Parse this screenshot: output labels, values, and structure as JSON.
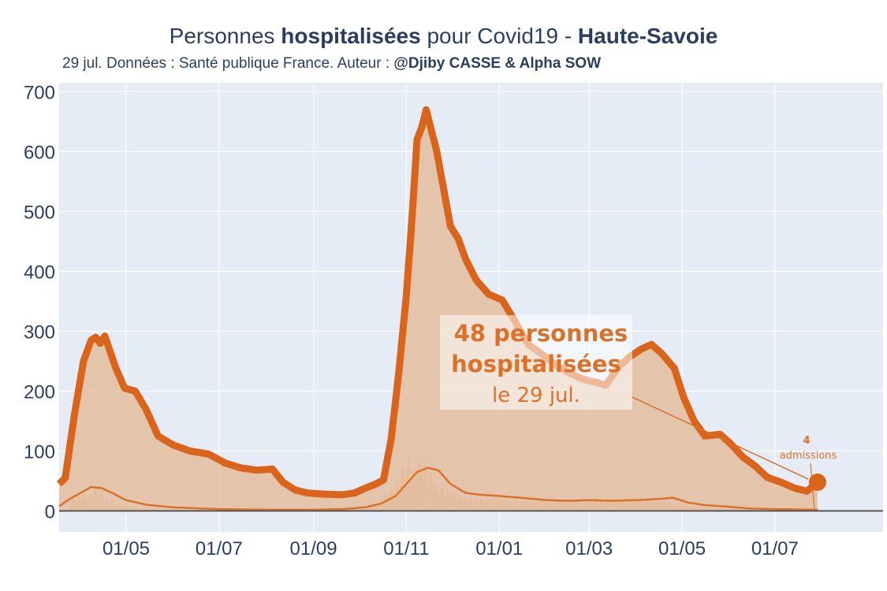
{
  "header": {
    "title_prefix": "Personnes ",
    "title_bold": "hospitalisées",
    "title_mid": " pour Covid19 - ",
    "title_region": "Haute-Savoie",
    "subtitle_text": "29 jul. Données : Santé publique France. Auteur : ",
    "subtitle_author": "@Djiby CASSE & Alpha SOW"
  },
  "annotation": {
    "line1": "48 personnes",
    "line2": "hospitalisées",
    "line3": "le 29 jul."
  },
  "admissions_annotation": {
    "value": "4",
    "label": "admissions"
  },
  "colors": {
    "main_line": "#d9651c",
    "fill": "#e4bd9c",
    "secondary_line": "#d9722a",
    "bars": "#e3a27a",
    "plot_bg": "#e5ecf6",
    "grid": "#ffffff",
    "text": "#2a3f5f"
  },
  "chart_data": {
    "type": "area",
    "x_axis": {
      "type": "date",
      "range": [
        "2020-03-18",
        "2021-09-10"
      ],
      "tick_values": [
        "2020-05-01",
        "2020-07-01",
        "2020-09-01",
        "2020-11-01",
        "2021-01-01",
        "2021-03-01",
        "2021-05-01",
        "2021-07-01"
      ],
      "tick_labels": [
        "01/05",
        "01/07",
        "01/09",
        "01/11",
        "01/01",
        "01/03",
        "01/05",
        "01/07"
      ]
    },
    "y_axis": {
      "range": [
        -35,
        715
      ],
      "tick_values": [
        0,
        100,
        200,
        300,
        400,
        500,
        600,
        700
      ],
      "tick_labels": [
        "0",
        "100",
        "200",
        "300",
        "400",
        "500",
        "600",
        "700"
      ],
      "grid": true
    },
    "legend": "none",
    "series": [
      {
        "kind": "hospitalised",
        "x": [
          "2020-03-18",
          "2020-03-22",
          "2020-03-28",
          "2020-04-03",
          "2020-04-08",
          "2020-04-11",
          "2020-04-14",
          "2020-04-17",
          "2020-04-20",
          "2020-04-24",
          "2020-04-30",
          "2020-05-07",
          "2020-05-14",
          "2020-05-22",
          "2020-06-01",
          "2020-06-12",
          "2020-06-24",
          "2020-07-05",
          "2020-07-15",
          "2020-07-26",
          "2020-08-05",
          "2020-08-12",
          "2020-08-20",
          "2020-08-28",
          "2020-09-08",
          "2020-09-20",
          "2020-09-28",
          "2020-10-05",
          "2020-10-12",
          "2020-10-17",
          "2020-10-22",
          "2020-10-27",
          "2020-11-01",
          "2020-11-05",
          "2020-11-08",
          "2020-11-11",
          "2020-11-14",
          "2020-11-17",
          "2020-11-21",
          "2020-11-26",
          "2020-11-30",
          "2020-12-05",
          "2020-12-10",
          "2020-12-17",
          "2020-12-25",
          "2021-01-03",
          "2021-01-11",
          "2021-01-20",
          "2021-01-30",
          "2021-02-08",
          "2021-02-18",
          "2021-02-25",
          "2021-03-05",
          "2021-03-12",
          "2021-03-20",
          "2021-03-28",
          "2021-04-04",
          "2021-04-11",
          "2021-04-18",
          "2021-04-26",
          "2021-05-02",
          "2021-05-09",
          "2021-05-16",
          "2021-05-26",
          "2021-06-02",
          "2021-06-10",
          "2021-06-18",
          "2021-06-26",
          "2021-07-05",
          "2021-07-14",
          "2021-07-22",
          "2021-07-29"
        ],
        "y": [
          45,
          55,
          160,
          250,
          285,
          290,
          280,
          292,
          270,
          240,
          205,
          200,
          170,
          125,
          110,
          100,
          95,
          80,
          72,
          68,
          70,
          48,
          35,
          30,
          28,
          27,
          30,
          38,
          45,
          52,
          120,
          230,
          360,
          500,
          620,
          640,
          670,
          640,
          600,
          530,
          475,
          455,
          420,
          385,
          362,
          352,
          318,
          278,
          260,
          242,
          228,
          220,
          215,
          210,
          240,
          258,
          270,
          278,
          262,
          238,
          190,
          150,
          125,
          128,
          112,
          90,
          75,
          56,
          48,
          38,
          33,
          48
        ]
      },
      {
        "kind": "secondary",
        "x": [
          "2020-03-18",
          "2020-03-25",
          "2020-04-01",
          "2020-04-08",
          "2020-04-15",
          "2020-04-22",
          "2020-05-01",
          "2020-05-15",
          "2020-06-01",
          "2020-07-01",
          "2020-08-01",
          "2020-09-01",
          "2020-09-20",
          "2020-10-05",
          "2020-10-15",
          "2020-10-25",
          "2020-11-01",
          "2020-11-08",
          "2020-11-15",
          "2020-11-22",
          "2020-11-30",
          "2020-12-10",
          "2020-12-20",
          "2021-01-01",
          "2021-01-15",
          "2021-02-01",
          "2021-02-15",
          "2021-03-01",
          "2021-03-15",
          "2021-04-01",
          "2021-04-15",
          "2021-04-25",
          "2021-05-05",
          "2021-05-15",
          "2021-06-01",
          "2021-06-15",
          "2021-07-01",
          "2021-07-29"
        ],
        "y": [
          8,
          20,
          30,
          40,
          38,
          30,
          18,
          10,
          6,
          3,
          2,
          2,
          3,
          6,
          12,
          25,
          45,
          65,
          72,
          68,
          45,
          30,
          27,
          25,
          22,
          18,
          17,
          18,
          17,
          18,
          20,
          22,
          14,
          10,
          7,
          4,
          3,
          2
        ]
      },
      {
        "kind": "admissions",
        "x": [
          "2020-03-25",
          "2020-04-01",
          "2020-04-06",
          "2020-04-10",
          "2020-04-14",
          "2020-04-18",
          "2020-04-24",
          "2020-05-01",
          "2020-05-10",
          "2020-06-01",
          "2020-07-01",
          "2020-08-01",
          "2020-09-01",
          "2020-10-01",
          "2020-10-12",
          "2020-10-20",
          "2020-10-26",
          "2020-10-30",
          "2020-11-03",
          "2020-11-06",
          "2020-11-09",
          "2020-11-12",
          "2020-11-15",
          "2020-11-18",
          "2020-11-22",
          "2020-11-26",
          "2020-12-01",
          "2020-12-08",
          "2020-12-15",
          "2021-01-01",
          "2021-01-15",
          "2021-02-01",
          "2021-03-01",
          "2021-04-01",
          "2021-04-15",
          "2021-05-01",
          "2021-06-01",
          "2021-07-01",
          "2021-07-29"
        ],
        "y": [
          20,
          35,
          25,
          40,
          30,
          22,
          15,
          8,
          5,
          3,
          2,
          2,
          3,
          8,
          15,
          30,
          55,
          80,
          95,
          70,
          85,
          90,
          75,
          60,
          45,
          35,
          30,
          25,
          20,
          20,
          18,
          15,
          18,
          22,
          20,
          10,
          5,
          3,
          4
        ]
      }
    ],
    "latest": {
      "date": "2021-07-29",
      "hospitalised": 48,
      "admissions": 4
    }
  }
}
